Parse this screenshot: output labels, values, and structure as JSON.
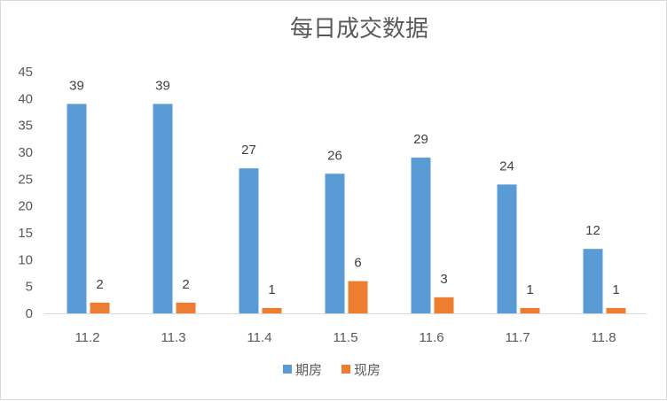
{
  "chart_data": {
    "type": "bar",
    "title": "每日成交数据",
    "categories": [
      "11.2",
      "11.3",
      "11.4",
      "11.5",
      "11.6",
      "11.7",
      "11.8"
    ],
    "series": [
      {
        "name": "期房",
        "values": [
          39,
          39,
          27,
          26,
          29,
          24,
          12
        ],
        "color": "#5b9bd5"
      },
      {
        "name": "现房",
        "values": [
          2,
          2,
          1,
          6,
          3,
          1,
          1
        ],
        "color": "#ed7d31"
      }
    ],
    "yticks": [
      "0",
      "5",
      "10",
      "15",
      "20",
      "25",
      "30",
      "35",
      "40",
      "45"
    ],
    "ylim": [
      0,
      45
    ],
    "grid": false,
    "legend_position": "bottom",
    "data_labels": true
  }
}
